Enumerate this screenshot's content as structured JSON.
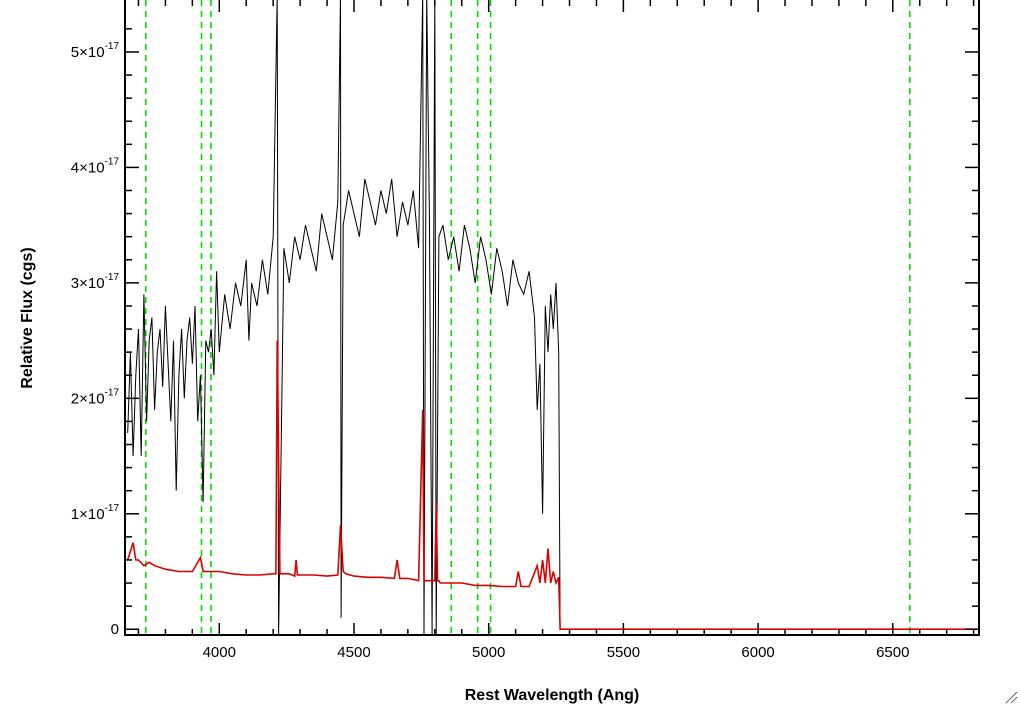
{
  "chart_data": {
    "type": "line",
    "title": "",
    "xlabel": "Rest Wavelength (Ang)",
    "ylabel": "Relative Flux (cgs)",
    "xlim": [
      3650,
      6820
    ],
    "ylim": [
      -0.05,
      5.45
    ],
    "y_scale_note": "×10^-17",
    "x_ticks": [
      4000,
      4500,
      5000,
      5500,
      6000,
      6500
    ],
    "x_tick_labels": [
      "4000",
      "4500",
      "5000",
      "5500",
      "6000",
      "6500"
    ],
    "y_ticks": [
      0,
      1,
      2,
      3,
      4,
      5
    ],
    "y_tick_labels": [
      {
        "mant": "0",
        "exp": ""
      },
      {
        "mant": "1×10",
        "exp": "-17"
      },
      {
        "mant": "2×10",
        "exp": "-17"
      },
      {
        "mant": "3×10",
        "exp": "-17"
      },
      {
        "mant": "4×10",
        "exp": "-17"
      },
      {
        "mant": "5×10",
        "exp": "-17"
      }
    ],
    "grid": false,
    "reference_lines": {
      "color": "#00dd00",
      "style": "dashed",
      "x": [
        3727,
        3934,
        3969,
        4861,
        4959,
        5007,
        6563
      ]
    },
    "series": [
      {
        "color": "#000000",
        "x": [
          3660,
          3670,
          3680,
          3690,
          3700,
          3710,
          3720,
          3730,
          3740,
          3750,
          3760,
          3770,
          3780,
          3790,
          3800,
          3810,
          3820,
          3830,
          3840,
          3850,
          3860,
          3870,
          3880,
          3890,
          3900,
          3910,
          3920,
          3930,
          3940,
          3950,
          3960,
          3970,
          3980,
          3990,
          4000,
          4020,
          4040,
          4060,
          4080,
          4100,
          4110,
          4120,
          4140,
          4160,
          4180,
          4200,
          4215,
          4220,
          4240,
          4260,
          4280,
          4300,
          4320,
          4340,
          4360,
          4380,
          4400,
          4420,
          4440,
          4450,
          4452,
          4460,
          4480,
          4500,
          4520,
          4540,
          4560,
          4580,
          4600,
          4620,
          4640,
          4660,
          4680,
          4700,
          4720,
          4740,
          4755,
          4760,
          4770,
          4780,
          4790,
          4800,
          4805,
          4815,
          4830,
          4850,
          4870,
          4890,
          4910,
          4930,
          4950,
          4970,
          4990,
          5010,
          5030,
          5050,
          5070,
          5090,
          5110,
          5130,
          5150,
          5170,
          5180,
          5190,
          5200,
          5210,
          5220,
          5230,
          5240,
          5250,
          5260,
          5265
        ],
        "y": [
          1.7,
          2.4,
          1.5,
          2.2,
          2.6,
          1.5,
          2.9,
          1.8,
          2.5,
          2.7,
          1.9,
          2.4,
          2.6,
          2.1,
          2.8,
          2.3,
          1.8,
          2.5,
          1.2,
          2.2,
          2.6,
          2.0,
          2.5,
          2.7,
          2.3,
          2.8,
          1.8,
          2.2,
          1.1,
          2.5,
          2.4,
          2.6,
          2.2,
          3.1,
          2.4,
          2.9,
          2.6,
          3.0,
          2.8,
          3.2,
          2.5,
          3.0,
          2.8,
          3.2,
          2.9,
          3.4,
          5.5,
          -0.05,
          3.3,
          3.0,
          3.4,
          3.2,
          3.5,
          3.3,
          3.1,
          3.6,
          3.4,
          3.2,
          3.7,
          5.5,
          0.1,
          3.5,
          3.8,
          3.6,
          3.4,
          3.9,
          3.7,
          3.5,
          3.8,
          3.6,
          3.9,
          3.4,
          3.7,
          3.5,
          3.8,
          3.3,
          5.5,
          -0.05,
          5.5,
          3.6,
          -0.05,
          5.5,
          -0.05,
          3.4,
          3.5,
          3.2,
          3.4,
          3.1,
          3.5,
          3.3,
          3.0,
          3.4,
          3.2,
          2.9,
          3.3,
          3.1,
          2.8,
          3.2,
          3.0,
          2.9,
          3.1,
          2.7,
          1.9,
          2.3,
          1.0,
          2.8,
          2.4,
          2.9,
          2.6,
          3.0,
          2.4,
          0.0
        ]
      },
      {
        "color": "#dd0000",
        "x": [
          3660,
          3680,
          3690,
          3700,
          3720,
          3740,
          3760,
          3800,
          3850,
          3900,
          3930,
          3940,
          3960,
          4000,
          4050,
          4100,
          4150,
          4200,
          4210,
          4215,
          4225,
          4260,
          4280,
          4285,
          4290,
          4300,
          4350,
          4400,
          4440,
          4450,
          4460,
          4470,
          4500,
          4550,
          4600,
          4650,
          4660,
          4670,
          4700,
          4740,
          4755,
          4760,
          4770,
          4780,
          4790,
          4800,
          4805,
          4810,
          4815,
          4820,
          4850,
          4900,
          4950,
          5000,
          5050,
          5100,
          5110,
          5120,
          5150,
          5180,
          5190,
          5200,
          5210,
          5220,
          5230,
          5240,
          5250,
          5260,
          5265,
          5270,
          5500,
          6000,
          6500,
          6820
        ],
        "y": [
          0.6,
          0.75,
          0.6,
          0.6,
          0.55,
          0.58,
          0.55,
          0.52,
          0.5,
          0.5,
          0.62,
          0.5,
          0.5,
          0.5,
          0.48,
          0.47,
          0.47,
          0.48,
          0.48,
          2.5,
          0.48,
          0.48,
          0.46,
          0.6,
          0.47,
          0.47,
          0.47,
          0.46,
          0.47,
          0.9,
          0.5,
          0.48,
          0.46,
          0.45,
          0.45,
          0.44,
          0.6,
          0.44,
          0.44,
          0.42,
          1.9,
          0.42,
          0.42,
          0.42,
          0.42,
          0.42,
          1.1,
          0.42,
          0.42,
          0.4,
          0.4,
          0.4,
          0.38,
          0.38,
          0.37,
          0.37,
          0.5,
          0.37,
          0.37,
          0.55,
          0.4,
          0.6,
          0.4,
          0.7,
          0.4,
          0.5,
          0.4,
          0.45,
          0.0,
          0.0,
          0.0,
          0.0,
          0.0,
          0.0
        ]
      }
    ]
  }
}
